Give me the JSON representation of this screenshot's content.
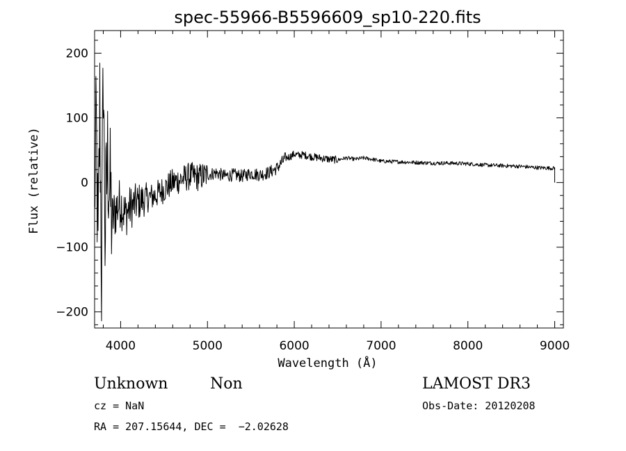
{
  "chart_data": {
    "type": "line",
    "title": "spec-55966-B5596609_sp10-220.fits",
    "xlabel": "Wavelength (Å)",
    "ylabel": "Flux (relative)",
    "xlim": [
      3700,
      9100
    ],
    "ylim": [
      -225,
      235
    ],
    "xticks": [
      4000,
      5000,
      6000,
      7000,
      8000,
      9000
    ],
    "yticks": [
      -200,
      -100,
      0,
      100,
      200
    ],
    "ytick_labels": [
      "−200",
      "−100",
      "0",
      "100",
      "200"
    ],
    "grid": false,
    "legend": "none",
    "line_color": "#000000",
    "series": [
      {
        "x": [
          3700,
          3720,
          3740,
          3760,
          3780,
          3800,
          3820,
          3850,
          3900,
          3950,
          4000,
          4050,
          4100,
          4150,
          4200,
          4300,
          4400,
          4500,
          4600,
          4700,
          4800,
          4900,
          5000,
          5100,
          5200,
          5300,
          5400,
          5500,
          5600,
          5700,
          5800,
          5850,
          5900,
          5950,
          6000,
          6050,
          6100,
          6200,
          6300,
          6400,
          6500,
          6600,
          6700,
          6800,
          6900,
          7000,
          7200,
          7400,
          7600,
          7800,
          8000,
          8200,
          8400,
          8600,
          8800,
          9000
        ],
        "y": [
          -20,
          80,
          -120,
          120,
          -150,
          185,
          -80,
          40,
          -60,
          -40,
          -30,
          -50,
          -40,
          -35,
          -30,
          -25,
          -20,
          -10,
          0,
          5,
          10,
          8,
          12,
          15,
          10,
          12,
          10,
          14,
          12,
          15,
          22,
          30,
          38,
          40,
          44,
          42,
          43,
          40,
          38,
          36,
          35,
          38,
          36,
          38,
          36,
          33,
          32,
          31,
          30,
          30,
          29,
          27,
          26,
          25,
          23,
          22
        ]
      }
    ]
  },
  "info": {
    "object_class": "Unknown",
    "subclass": "Non",
    "cz": "cz = NaN",
    "coords": "RA = 207.15644, DEC =  −2.02628",
    "survey": "LAMOST DR3",
    "obs_date": "Obs-Date: 20120208"
  }
}
